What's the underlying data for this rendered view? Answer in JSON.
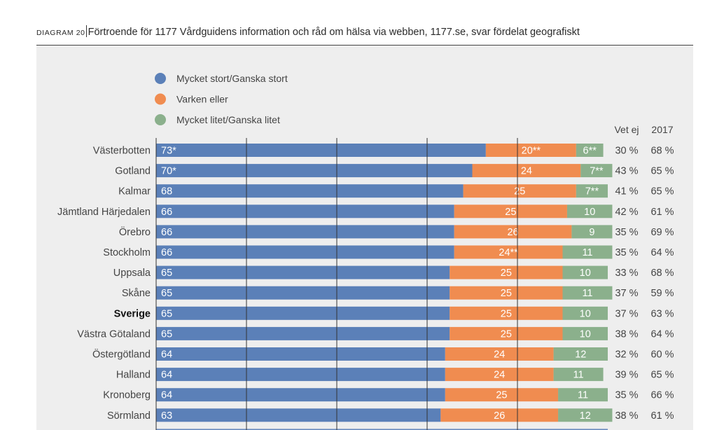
{
  "title": {
    "label": "DIAGRAM 20",
    "text": "Förtroende för 1177 Vårdguidens information och råd om hälsa via webben, 1177.se, svar fördelat geografiskt"
  },
  "colors": {
    "high": "#5b80b8",
    "neutral": "#f08c50",
    "low": "#8bb08c",
    "panel": "#eeeeee"
  },
  "chart_data": {
    "type": "bar",
    "orientation": "horizontal",
    "stacked": true,
    "xlim": [
      0,
      100
    ],
    "series": [
      {
        "name": "Mycket stort/Ganska stort",
        "color": "#5b80b8",
        "values": [
          73,
          70,
          68,
          66,
          66,
          66,
          65,
          65,
          65,
          65,
          64,
          64,
          64,
          63
        ],
        "labels": [
          "73*",
          "70*",
          "68",
          "66",
          "66",
          "66",
          "65",
          "65",
          "65",
          "65",
          "64",
          "64",
          "64",
          "63"
        ]
      },
      {
        "name": "Varken eller",
        "color": "#f08c50",
        "values": [
          20,
          24,
          25,
          25,
          26,
          24,
          25,
          25,
          25,
          25,
          24,
          24,
          25,
          26
        ],
        "labels": [
          "20**",
          "24",
          "25",
          "25",
          "26",
          "24**",
          "25",
          "25",
          "25",
          "25",
          "24",
          "24",
          "25",
          "26"
        ]
      },
      {
        "name": "Mycket litet/Ganska litet",
        "color": "#8bb08c",
        "values": [
          6,
          7,
          7,
          10,
          9,
          11,
          10,
          11,
          10,
          10,
          12,
          11,
          11,
          12
        ],
        "labels": [
          "6**",
          "7**",
          "7**",
          "10",
          "9",
          "11",
          "10",
          "11",
          "10",
          "10",
          "12",
          "11",
          "11",
          "12"
        ]
      }
    ],
    "categories": [
      "Västerbotten",
      "Gotland",
      "Kalmar",
      "Jämtland Härjedalen",
      "Örebro",
      "Stockholm",
      "Uppsala",
      "Skåne",
      "Sverige",
      "Västra Götaland",
      "Östergötland",
      "Halland",
      "Kronoberg",
      "Sörmland"
    ],
    "highlight_category": "Sverige",
    "columns": [
      {
        "header": "Vet ej",
        "values": [
          "30 %",
          "43 %",
          "41 %",
          "42 %",
          "35 %",
          "35 %",
          "33 %",
          "37 %",
          "37 %",
          "38 %",
          "32 %",
          "39 %",
          "35 %",
          "38 %"
        ]
      },
      {
        "header": "2017",
        "values": [
          "68 %",
          "65 %",
          "65 %",
          "61 %",
          "69 %",
          "64 %",
          "68 %",
          "59 %",
          "63 %",
          "64 %",
          "60 %",
          "65 %",
          "66 %",
          "61 %"
        ]
      }
    ],
    "legend_position": "top-left",
    "grid": true
  }
}
